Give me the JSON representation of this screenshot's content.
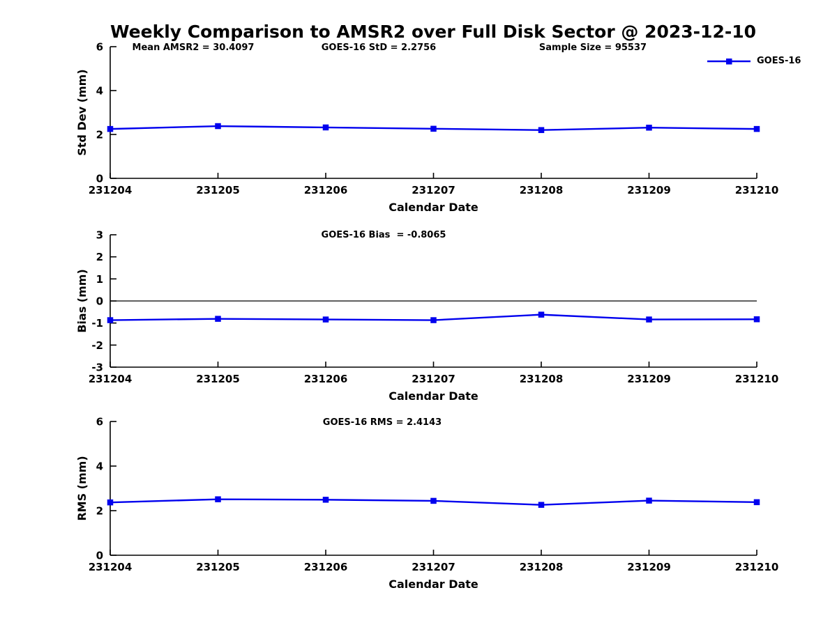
{
  "title": "Weekly Comparison to AMSR2 over Full Disk Sector @ 2023-12-10",
  "xlabel": "Calendar Date",
  "legend": {
    "label": "GOES-16",
    "color": "#0000EE",
    "position": "top-right",
    "marker": "filled-square"
  },
  "colors": {
    "line": "#0000EE",
    "axis": "#000000",
    "zero_line": "#000000",
    "background": "#FFFFFF",
    "text": "#000000"
  },
  "stats": {
    "mean_amsr2": 30.4097,
    "goes16_std": 2.2756,
    "sample_size": 95537,
    "goes16_bias": -0.8065,
    "goes16_rms": 2.4143
  },
  "chart_data": [
    {
      "type": "line",
      "panel": "std-dev",
      "annotations": [
        "Mean AMSR2 = 30.4097",
        "GOES-16 StD = 2.2756",
        "Sample Size = 95537"
      ],
      "x": [
        "231204",
        "231205",
        "231206",
        "231207",
        "231208",
        "231209",
        "231210"
      ],
      "series": [
        {
          "name": "GOES-16",
          "values": [
            2.25,
            2.38,
            2.32,
            2.26,
            2.2,
            2.31,
            2.25
          ]
        }
      ],
      "xlabel": "Calendar Date",
      "ylabel": "Std Dev (mm)",
      "ylim": [
        0,
        6
      ],
      "yticks": [
        0,
        2,
        4,
        6
      ],
      "grid": false,
      "zero_line": false,
      "marker": "square",
      "legend_visible": true
    },
    {
      "type": "line",
      "panel": "bias",
      "annotations": [
        "GOES-16 Bias  = -0.8065"
      ],
      "x": [
        "231204",
        "231205",
        "231206",
        "231207",
        "231208",
        "231209",
        "231210"
      ],
      "series": [
        {
          "name": "GOES-16",
          "values": [
            -0.87,
            -0.81,
            -0.84,
            -0.87,
            -0.62,
            -0.84,
            -0.83
          ]
        }
      ],
      "xlabel": "Calendar Date",
      "ylabel": "Bias (mm)",
      "ylim": [
        -3,
        3
      ],
      "yticks": [
        -3,
        -2,
        -1,
        0,
        1,
        2,
        3
      ],
      "grid": false,
      "zero_line": true,
      "marker": "square",
      "legend_visible": false
    },
    {
      "type": "line",
      "panel": "rms",
      "annotations": [
        "GOES-16 RMS = 2.4143"
      ],
      "x": [
        "231204",
        "231205",
        "231206",
        "231207",
        "231208",
        "231209",
        "231210"
      ],
      "series": [
        {
          "name": "GOES-16",
          "values": [
            2.37,
            2.51,
            2.49,
            2.44,
            2.26,
            2.45,
            2.38
          ]
        }
      ],
      "xlabel": "Calendar Date",
      "ylabel": "RMS (mm)",
      "ylim": [
        0,
        6
      ],
      "yticks": [
        0,
        2,
        4,
        6
      ],
      "grid": false,
      "zero_line": false,
      "marker": "square",
      "legend_visible": false
    }
  ]
}
